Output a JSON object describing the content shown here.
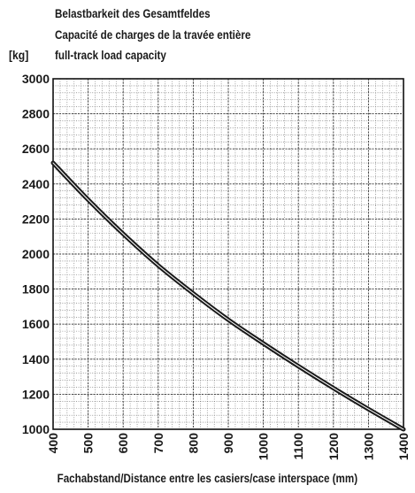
{
  "chart_data": {
    "type": "line",
    "title_lines": [
      "Belastbarkeit des Gesamtfeldes",
      "Capacité de charges de la travée entière",
      "full-track load capacity"
    ],
    "ylabel": "[kg]",
    "xlabel": "Fachabstand/Distance entre les casiers/case interspace (mm)",
    "xlim": [
      400,
      1400
    ],
    "ylim": [
      1000,
      3000
    ],
    "x_ticks": [
      400,
      500,
      600,
      700,
      800,
      900,
      1000,
      1100,
      1200,
      1300,
      1400
    ],
    "y_ticks": [
      1000,
      1200,
      1400,
      1600,
      1800,
      2000,
      2200,
      2400,
      2600,
      2800,
      3000
    ],
    "grid": "dense dotted",
    "series": [
      {
        "x": [
          400,
          500,
          600,
          700,
          800,
          900,
          1000,
          1100,
          1200,
          1300,
          1400
        ],
        "values": [
          2520,
          2310,
          2115,
          1935,
          1775,
          1625,
          1490,
          1360,
          1235,
          1115,
          1000
        ],
        "color": "#1a1a1a"
      }
    ]
  }
}
